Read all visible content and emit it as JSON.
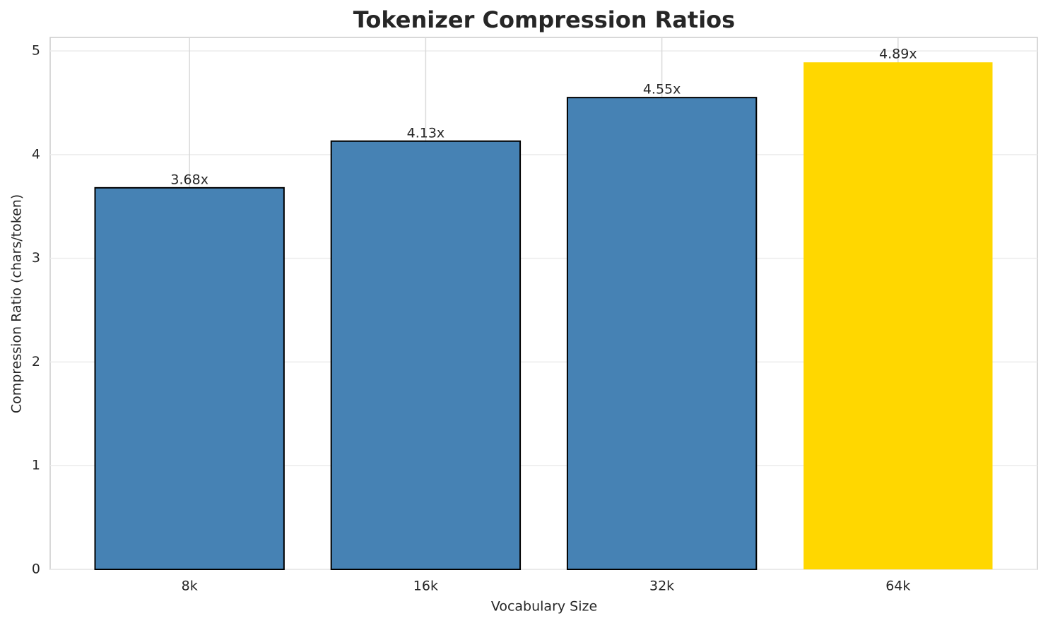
{
  "chart_data": {
    "type": "bar",
    "title": "Tokenizer Compression Ratios",
    "x_label": "Vocabulary Size",
    "y_label": "Compression Ratio (chars/token)",
    "categories": [
      "8k",
      "16k",
      "32k",
      "64k"
    ],
    "values": [
      3.68,
      4.13,
      4.55,
      4.89
    ],
    "value_labels": [
      "3.68x",
      "4.13x",
      "4.55x",
      "4.89x"
    ],
    "colors": [
      "#4682b4",
      "#4682b4",
      "#4682b4",
      "#ffd700"
    ],
    "edgecolors": [
      "#000000",
      "#000000",
      "#000000",
      null
    ],
    "ylim": [
      0,
      5.13
    ],
    "yticks": [
      0,
      1,
      2,
      3,
      4,
      5
    ],
    "grid": true
  }
}
